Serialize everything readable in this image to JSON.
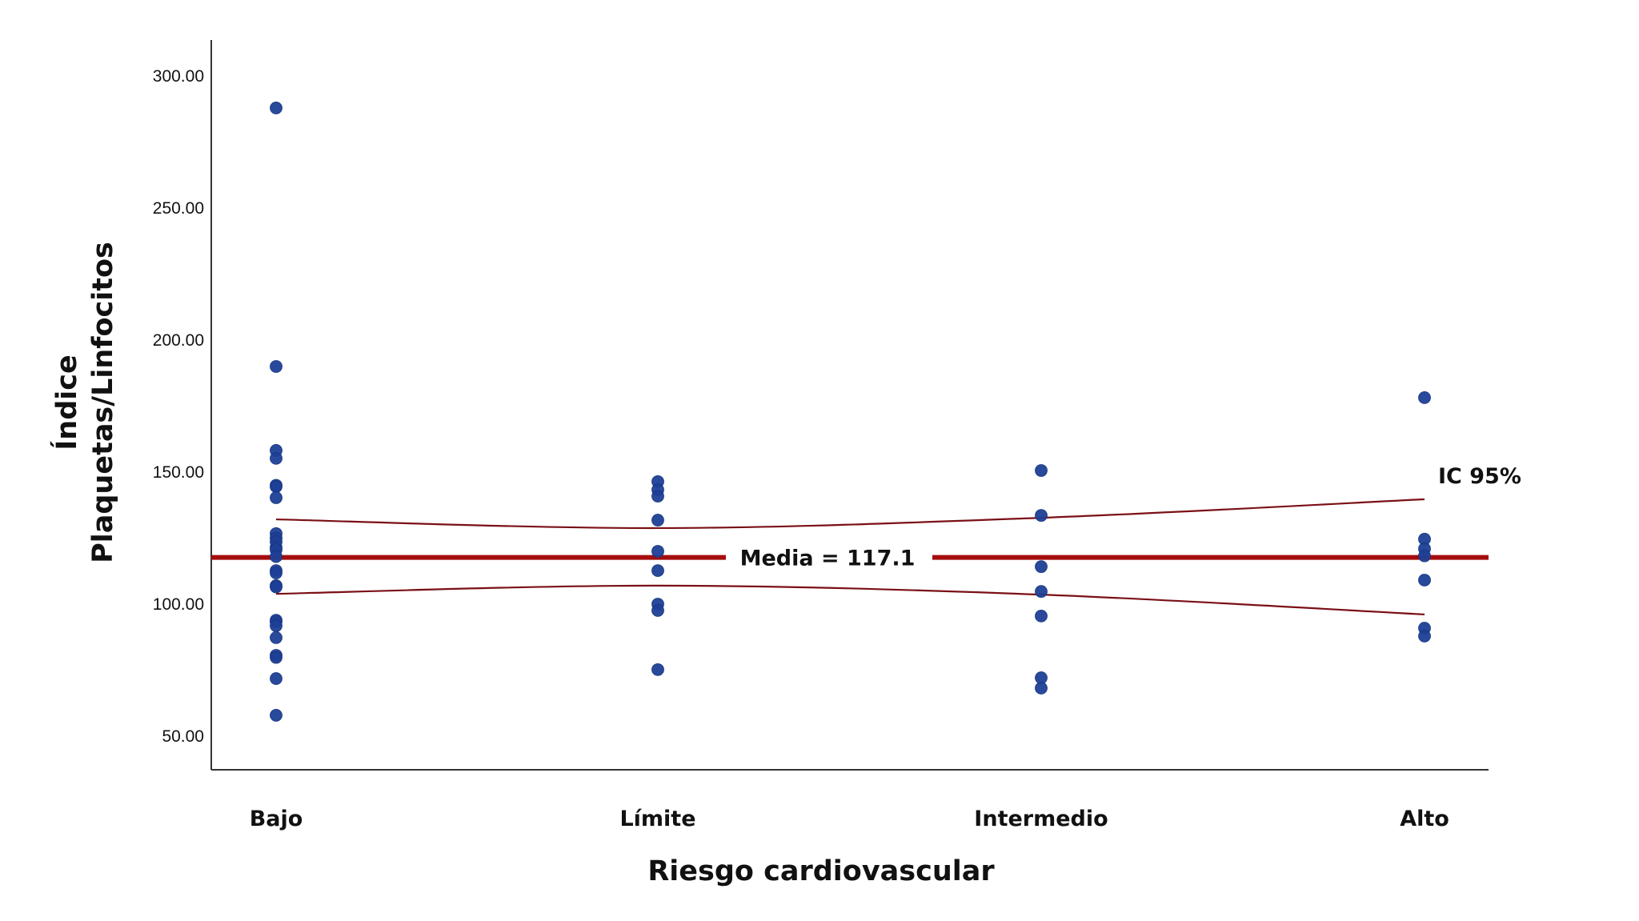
{
  "chart_data": {
    "type": "scatter",
    "title": "",
    "xlabel": "Riesgo cardiovascular",
    "ylabel": [
      "Índice",
      "Plaquetas/Linfocitos"
    ],
    "categories": [
      "Bajo",
      "Límite",
      "Intermedio",
      "Alto"
    ],
    "yticks": [
      50,
      100,
      150,
      200,
      250,
      300
    ],
    "ytick_labels": [
      "50.00",
      "100.00",
      "150.00",
      "200.00",
      "250.00",
      "300.00"
    ],
    "ylim": [
      36,
      315
    ],
    "grid": false,
    "series": [
      {
        "name": "Bajo",
        "values": [
          287.9,
          190.0,
          158.2,
          155.2,
          145.0,
          144.5,
          140.3,
          126.7,
          125.0,
          123.6,
          121.5,
          120.6,
          118.0,
          112.7,
          111.8,
          107.0,
          106.5,
          93.9,
          93.3,
          91.8,
          87.3,
          80.6,
          79.8,
          71.8,
          57.9
        ]
      },
      {
        "name": "Límite",
        "values": [
          146.4,
          143.3,
          140.9,
          131.8,
          120.0,
          112.7,
          100.0,
          97.6,
          75.2
        ]
      },
      {
        "name": "Intermedio",
        "values": [
          150.6,
          133.6,
          114.2,
          104.8,
          95.5,
          72.1,
          68.2
        ]
      },
      {
        "name": "Alto",
        "values": [
          178.2,
          124.6,
          121.0,
          118.3,
          109.1,
          90.9,
          87.9
        ]
      }
    ],
    "reference_line": {
      "label": "Media = 117.1",
      "value": 117.1
    },
    "confidence_band": {
      "label": "IC 95%",
      "upper": [
        132.1,
        128.8,
        132.7,
        139.7
      ],
      "lower": [
        103.9,
        107.0,
        103.6,
        96.1
      ]
    },
    "colors": {
      "points": "#1d3f96",
      "mean_line": "#a50d0d",
      "ci_lines": "#7a1016",
      "axis": "#333333"
    }
  }
}
